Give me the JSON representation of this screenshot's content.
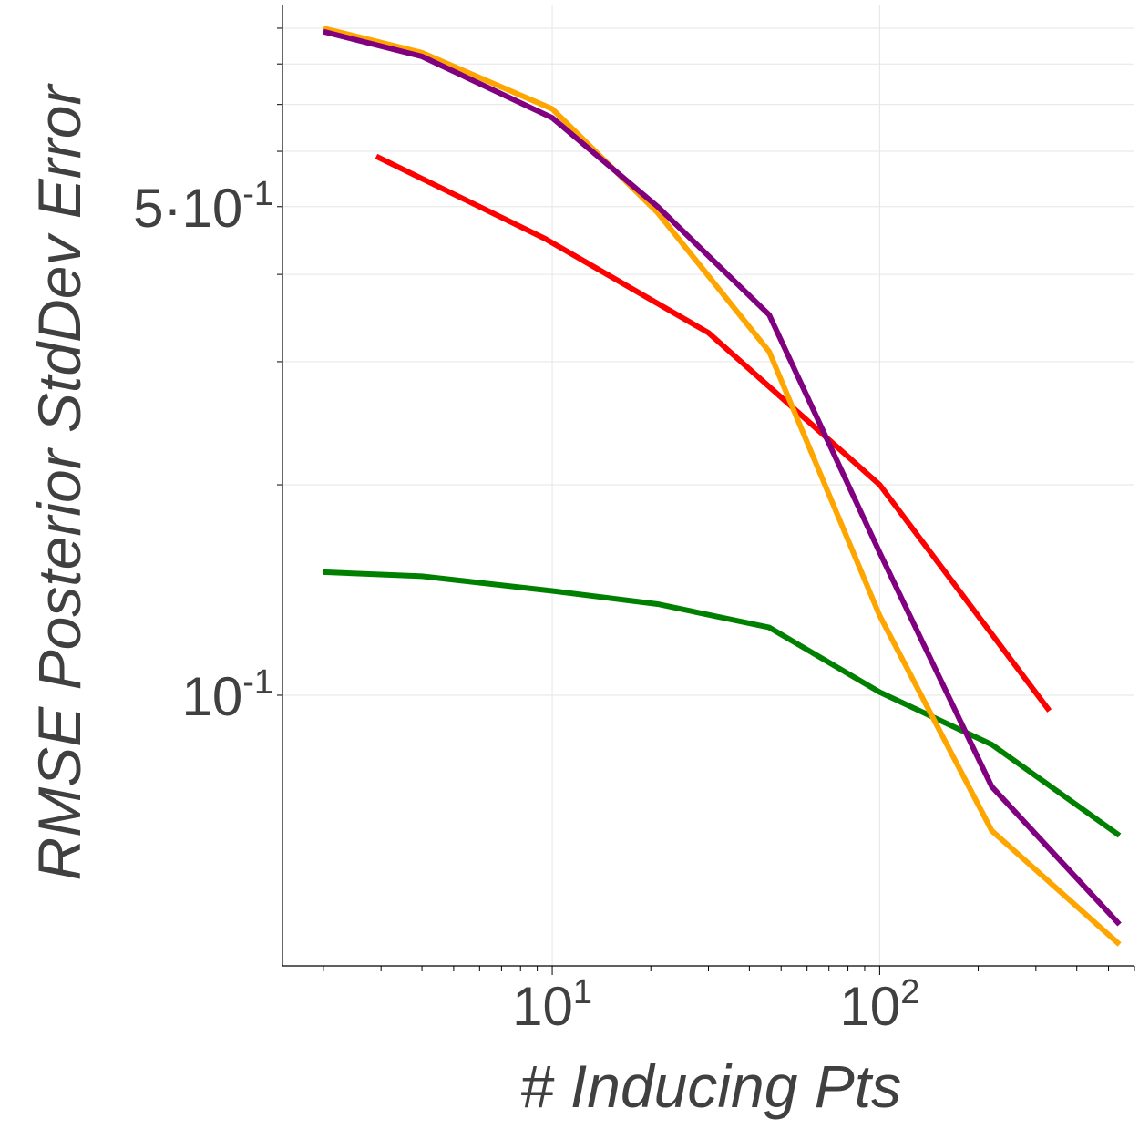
{
  "chart_data": {
    "type": "line",
    "title": "",
    "xlabel": "# Inducing Pts",
    "ylabel": "RMSE Posterior StdDev Error",
    "xscale": "log",
    "yscale": "log",
    "xlim": [
      1.5,
      600
    ],
    "ylim": [
      0.041,
      0.97
    ],
    "grid": true,
    "x_ticks": [
      {
        "value": 10,
        "base": "10",
        "exp": "1"
      },
      {
        "value": 100,
        "base": "10",
        "exp": "2"
      }
    ],
    "y_ticks": [
      {
        "value": 0.1,
        "prefix": "",
        "base": "10",
        "exp": "-1"
      },
      {
        "value": 0.5,
        "prefix": "5·",
        "base": "10",
        "exp": "-1"
      }
    ],
    "series": [
      {
        "name": "orange",
        "color": "#FFA500",
        "x": [
          2,
          4,
          10,
          21,
          46,
          100,
          220,
          540
        ],
        "y": [
          0.9,
          0.83,
          0.69,
          0.49,
          0.31,
          0.13,
          0.064,
          0.044
        ]
      },
      {
        "name": "purple",
        "color": "#800080",
        "x": [
          2,
          4,
          10,
          21,
          46,
          100,
          220,
          540
        ],
        "y": [
          0.89,
          0.82,
          0.67,
          0.5,
          0.35,
          0.16,
          0.074,
          0.047
        ]
      },
      {
        "name": "red",
        "color": "#FF0000",
        "x": [
          2.9,
          9.5,
          30,
          100,
          330
        ],
        "y": [
          0.59,
          0.45,
          0.33,
          0.2,
          0.095
        ]
      },
      {
        "name": "green",
        "color": "#008000",
        "x": [
          2,
          4,
          10,
          21,
          46,
          100,
          220,
          540
        ],
        "y": [
          0.15,
          0.148,
          0.141,
          0.135,
          0.125,
          0.101,
          0.085,
          0.063
        ]
      }
    ]
  }
}
